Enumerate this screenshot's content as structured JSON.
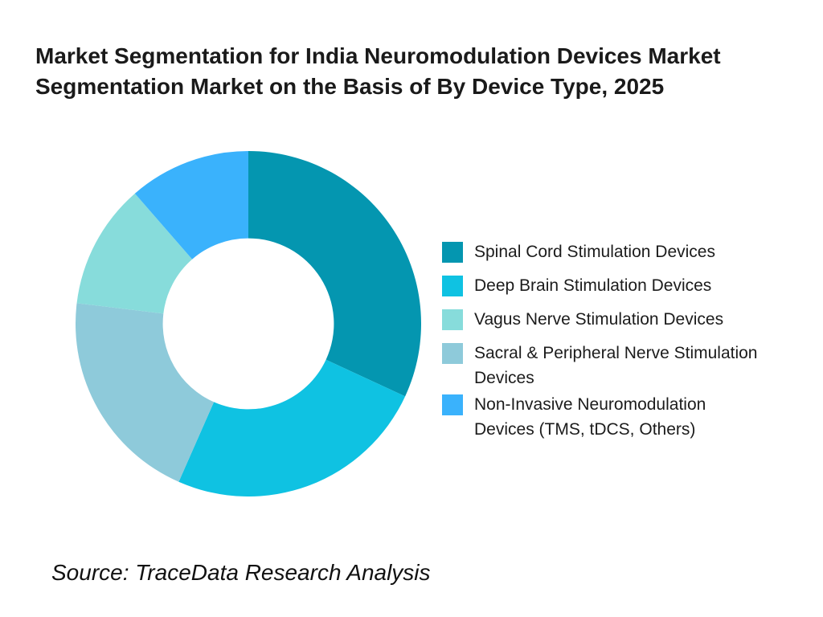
{
  "header": {
    "title_line1": "Market Segmentation for India Neuromodulation Devices Market",
    "title_line2": "Segmentation Market on the Basis of By Device Type, 2025"
  },
  "legend": {
    "items": [
      {
        "label": "Spinal Cord Stimulation Devices"
      },
      {
        "label": "Deep Brain Stimulation Devices"
      },
      {
        "label": "Vagus Nerve Stimulation Devices"
      },
      {
        "label": "Sacral & Peripheral Nerve Stimulation\nDevices"
      },
      {
        "label": "Non-Invasive Neuromodulation\nDevices (TMS, tDCS, Others)"
      }
    ]
  },
  "source": {
    "text": "Source: TraceData Research Analysis"
  },
  "chart_data": {
    "type": "pie",
    "subtype": "donut",
    "title": "Market Segmentation for India Neuromodulation Devices Market Segmentation Market on the Basis of By Device Type, 2025",
    "slices": [
      {
        "label": "Spinal Cord Stimulation Devices",
        "value_pct": 31.9,
        "color": "#0496B0"
      },
      {
        "label": "Deep Brain Stimulation Devices",
        "value_pct": 24.7,
        "color": "#0FC2E2"
      },
      {
        "label": "Vagus Nerve Stimulation Devices",
        "value_pct": 11.7,
        "color": "#87DCDB"
      },
      {
        "label": "Sacral & Peripheral Nerve Stimulation Devices",
        "value_pct": 20.3,
        "color": "#8ECADA"
      },
      {
        "label": "Non-Invasive Neuromodulation Devices (TMS, tDCS, Others)",
        "value_pct": 11.4,
        "color": "#3AB2FC"
      }
    ],
    "clockwise_draw_order": [
      0,
      1,
      3,
      2,
      4
    ],
    "start_angle_deg": 0,
    "direction": "clockwise",
    "inner_radius_ratio": 0.495,
    "legend_position": "right",
    "values_labeled_on_chart": false
  }
}
